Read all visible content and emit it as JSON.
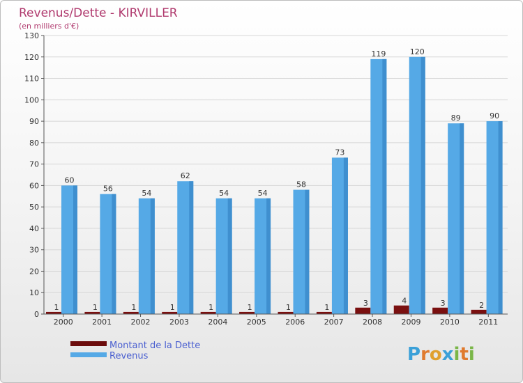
{
  "chart_data": {
    "type": "bar",
    "title": "Revenus/Dette - KIRVILLER",
    "subtitle": "(en milliers d'€)",
    "categories": [
      "2000",
      "2001",
      "2002",
      "2003",
      "2004",
      "2005",
      "2006",
      "2007",
      "2008",
      "2009",
      "2010",
      "2011"
    ],
    "series": [
      {
        "name": "Montant de la Dette",
        "color": "#7a1010",
        "values": [
          1,
          1,
          1,
          1,
          1,
          1,
          1,
          1,
          3,
          4,
          3,
          2
        ]
      },
      {
        "name": "Revenus",
        "color": "#55a9e6",
        "values": [
          60,
          56,
          54,
          62,
          54,
          54,
          58,
          73,
          119,
          120,
          89,
          90
        ]
      }
    ],
    "ylim": [
      0,
      130
    ],
    "yticks": [
      0,
      10,
      20,
      30,
      40,
      50,
      60,
      70,
      80,
      90,
      100,
      110,
      120,
      130
    ],
    "grid": true,
    "legend_position": "bottom-left"
  },
  "brand": {
    "letters": [
      "P",
      "r",
      "o",
      "x",
      "i",
      "t",
      "i"
    ],
    "colors": [
      "#3aa0d8",
      "#e07a2e",
      "#e0a02e",
      "#3aa0d8",
      "#7ab648",
      "#e07a2e",
      "#7ab648"
    ]
  }
}
